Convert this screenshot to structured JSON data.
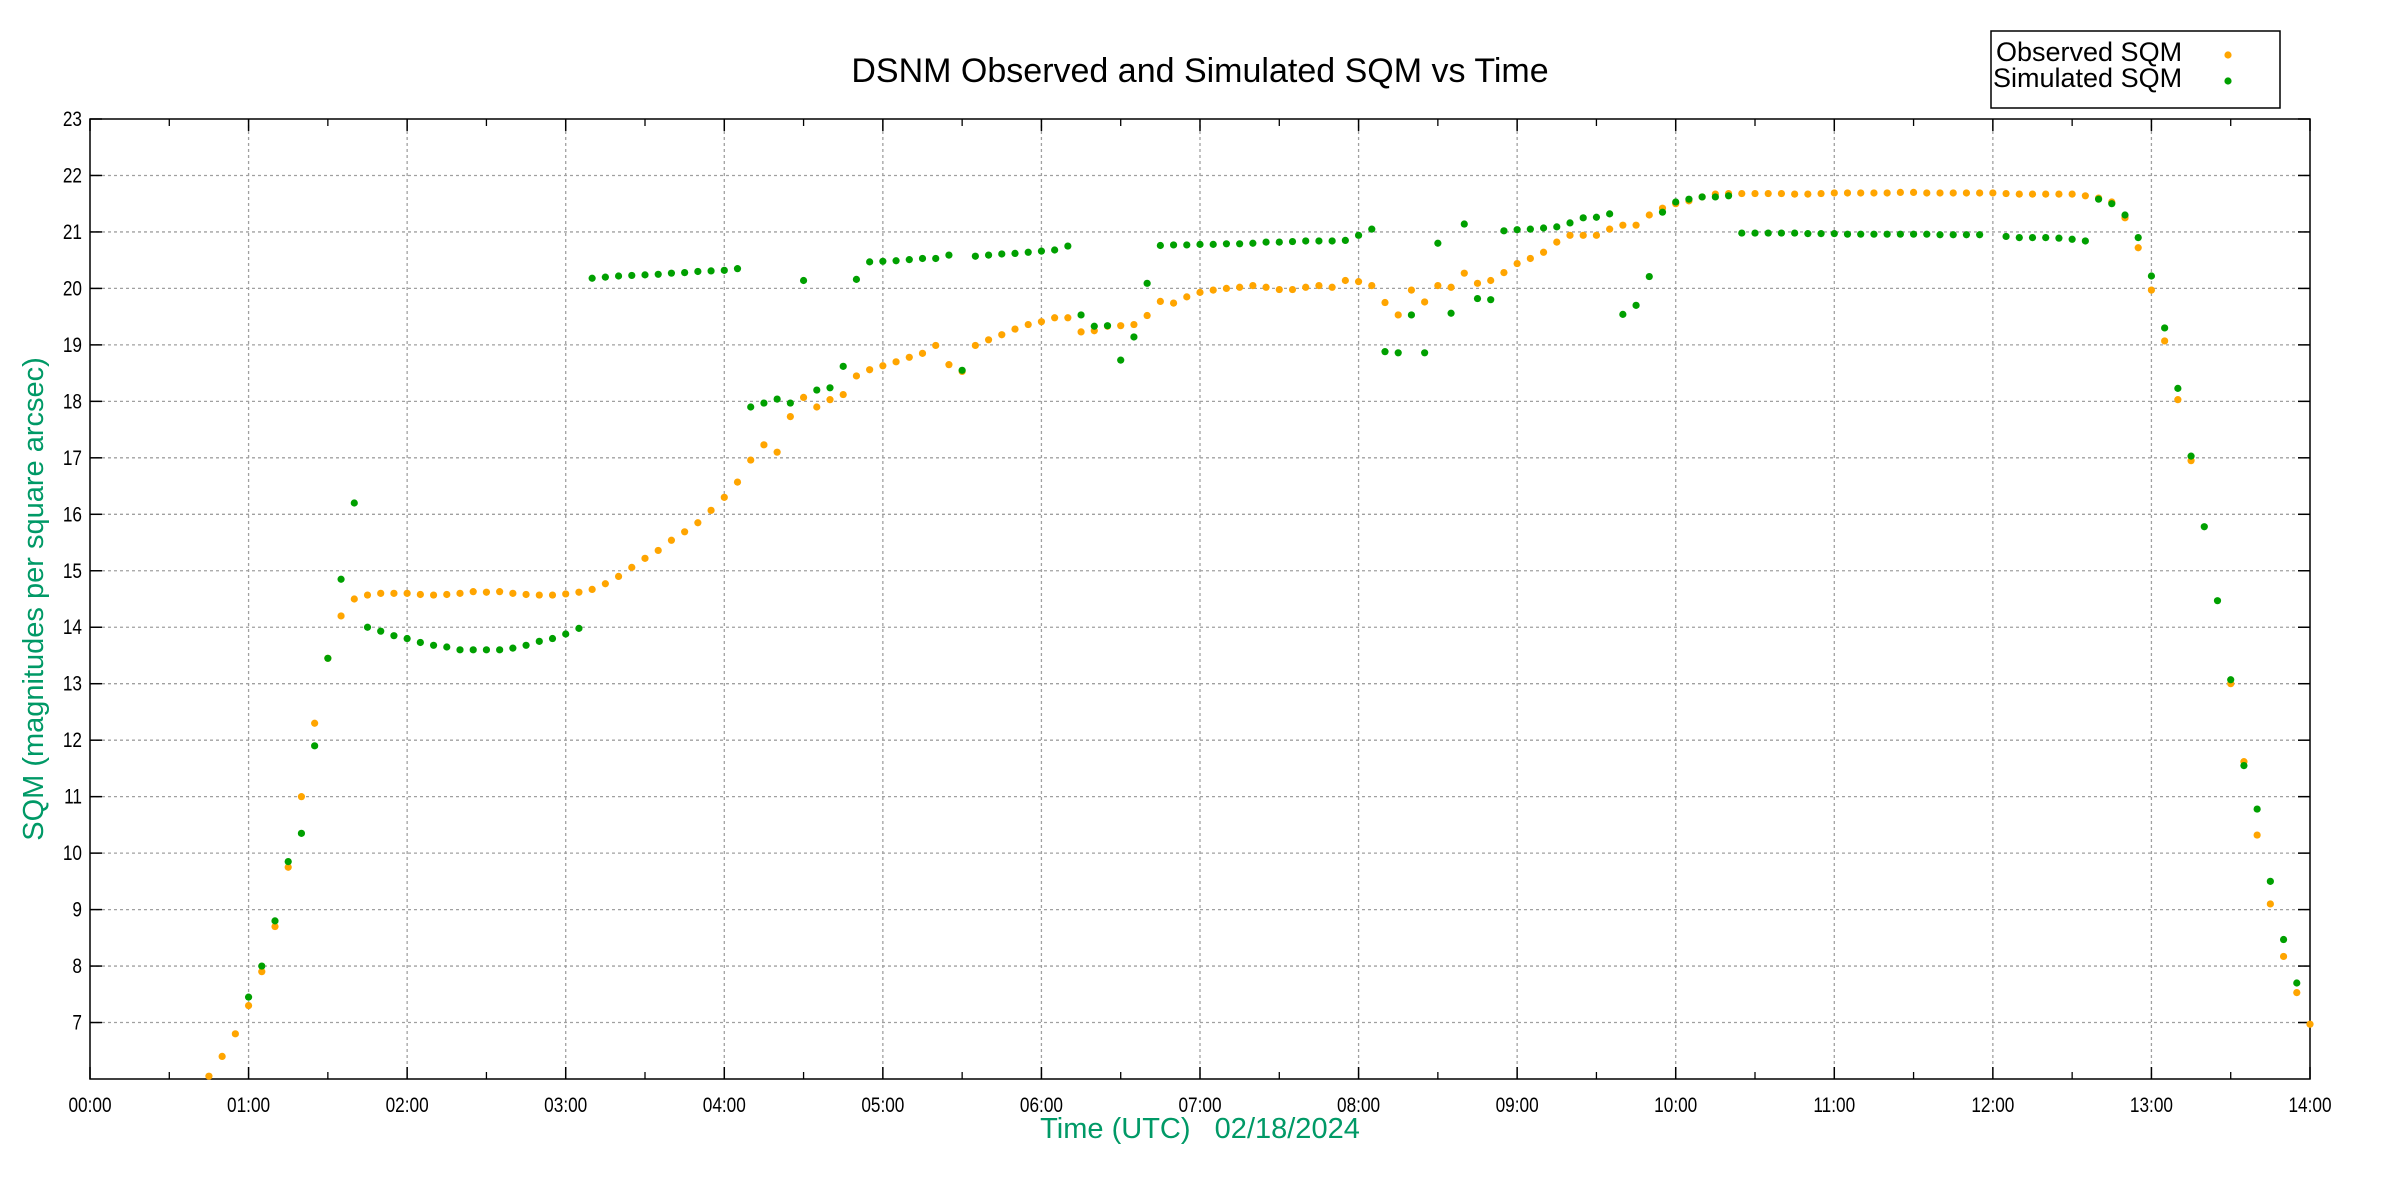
{
  "chart_data": {
    "type": "scatter",
    "title": "DSNM Observed and Simulated SQM vs Time",
    "xlabel": "Time (UTC)   02/18/2024",
    "ylabel": "SQM (magnitudes per square arcsec)",
    "xlim": [
      "00:00",
      "14:00"
    ],
    "ylim": [
      6,
      23
    ],
    "x_ticks": [
      "00:00",
      "01:00",
      "02:00",
      "03:00",
      "04:00",
      "05:00",
      "06:00",
      "07:00",
      "08:00",
      "09:00",
      "10:00",
      "11:00",
      "12:00",
      "13:00",
      "14:00"
    ],
    "y_ticks": [
      7,
      8,
      9,
      10,
      11,
      12,
      13,
      14,
      15,
      16,
      17,
      18,
      19,
      20,
      21,
      22,
      23
    ],
    "grid": true,
    "legend_placement": "top-right, outside plot",
    "x": [
      "00:45",
      "00:50",
      "00:55",
      "01:00",
      "01:05",
      "01:10",
      "01:15",
      "01:20",
      "01:25",
      "01:30",
      "01:35",
      "01:40",
      "01:45",
      "01:50",
      "01:55",
      "02:00",
      "02:05",
      "02:10",
      "02:15",
      "02:20",
      "02:25",
      "02:30",
      "02:35",
      "02:40",
      "02:45",
      "02:50",
      "02:55",
      "03:00",
      "03:05",
      "03:10",
      "03:15",
      "03:20",
      "03:25",
      "03:30",
      "03:35",
      "03:40",
      "03:45",
      "03:50",
      "03:55",
      "04:00",
      "04:05",
      "04:10",
      "04:15",
      "04:20",
      "04:25",
      "04:30",
      "04:35",
      "04:40",
      "04:45",
      "04:50",
      "04:55",
      "05:00",
      "05:05",
      "05:10",
      "05:15",
      "05:20",
      "05:25",
      "05:30",
      "05:35",
      "05:40",
      "05:45",
      "05:50",
      "05:55",
      "06:00",
      "06:05",
      "06:10",
      "06:15",
      "06:20",
      "06:25",
      "06:30",
      "06:35",
      "06:40",
      "06:45",
      "06:50",
      "06:55",
      "07:00",
      "07:05",
      "07:10",
      "07:15",
      "07:20",
      "07:25",
      "07:30",
      "07:35",
      "07:40",
      "07:45",
      "07:50",
      "07:55",
      "08:00",
      "08:05",
      "08:10",
      "08:15",
      "08:20",
      "08:25",
      "08:30",
      "08:35",
      "08:40",
      "08:45",
      "08:50",
      "08:55",
      "09:00",
      "09:05",
      "09:10",
      "09:15",
      "09:20",
      "09:25",
      "09:30",
      "09:35",
      "09:40",
      "09:45",
      "09:50",
      "09:55",
      "10:00",
      "10:05",
      "10:10",
      "10:15",
      "10:20",
      "10:25",
      "10:30",
      "10:35",
      "10:40",
      "10:45",
      "10:50",
      "10:55",
      "11:00",
      "11:05",
      "11:10",
      "11:15",
      "11:20",
      "11:25",
      "11:30",
      "11:35",
      "11:40",
      "11:45",
      "11:50",
      "11:55",
      "12:00",
      "12:05",
      "12:10",
      "12:15",
      "12:20",
      "12:25",
      "12:30",
      "12:35",
      "12:40",
      "12:45",
      "12:50",
      "12:55",
      "13:00",
      "13:05",
      "13:10",
      "13:15",
      "13:20",
      "13:25",
      "13:30",
      "13:35",
      "13:40",
      "13:45",
      "13:50",
      "13:55",
      "14:00"
    ],
    "series": [
      {
        "name": "Observed SQM",
        "color": "#ffa500",
        "values": [
          6.05,
          6.4,
          6.8,
          7.3,
          7.9,
          8.7,
          9.75,
          11.0,
          12.3,
          13.45,
          14.2,
          14.5,
          14.57,
          14.6,
          14.6,
          14.6,
          14.58,
          14.57,
          14.58,
          14.6,
          14.63,
          14.62,
          14.63,
          14.6,
          14.58,
          14.57,
          14.57,
          14.59,
          14.62,
          14.67,
          14.77,
          14.9,
          15.06,
          15.22,
          15.36,
          15.54,
          15.69,
          15.85,
          16.07,
          16.3,
          16.57,
          16.96,
          17.23,
          17.1,
          17.73,
          18.07,
          17.9,
          18.03,
          18.12,
          18.45,
          18.56,
          18.63,
          18.7,
          18.78,
          18.85,
          18.99,
          18.65,
          18.53,
          18.99,
          19.09,
          19.18,
          19.28,
          19.36,
          19.41,
          19.48,
          19.48,
          19.23,
          19.25,
          19.33,
          19.34,
          19.36,
          19.52,
          19.77,
          19.74,
          19.85,
          19.93,
          19.97,
          20.0,
          20.02,
          20.05,
          20.02,
          19.98,
          19.98,
          20.02,
          20.05,
          20.02,
          20.14,
          20.12,
          20.05,
          19.75,
          19.53,
          19.97,
          19.76,
          20.05,
          20.02,
          20.27,
          20.09,
          20.14,
          20.28,
          20.44,
          20.53,
          20.64,
          20.82,
          20.94,
          20.94,
          20.94,
          21.05,
          21.12,
          21.12,
          21.3,
          21.42,
          21.5,
          21.55,
          21.62,
          21.67,
          21.68,
          21.68,
          21.68,
          21.68,
          21.68,
          21.67,
          21.67,
          21.68,
          21.69,
          21.69,
          21.69,
          21.69,
          21.69,
          21.7,
          21.7,
          21.69,
          21.69,
          21.69,
          21.69,
          21.69,
          21.69,
          21.68,
          21.67,
          21.67,
          21.67,
          21.67,
          21.67,
          21.64,
          21.6,
          21.53,
          21.25,
          20.72,
          19.97,
          19.07,
          18.03,
          16.95,
          null,
          null,
          13.0,
          11.62,
          10.32,
          9.1,
          8.17,
          7.53,
          6.97
        ]
      },
      {
        "name": "Simulated SQM",
        "color": "#00a000",
        "values": [
          null,
          null,
          null,
          7.45,
          8.0,
          8.8,
          9.85,
          10.35,
          11.9,
          13.45,
          14.85,
          16.2,
          14.0,
          13.93,
          13.85,
          13.8,
          13.73,
          13.68,
          13.65,
          13.6,
          13.6,
          13.6,
          13.6,
          13.63,
          13.68,
          13.75,
          13.8,
          13.88,
          13.98,
          20.18,
          20.2,
          20.22,
          20.23,
          20.24,
          20.25,
          20.27,
          20.28,
          20.3,
          20.31,
          20.32,
          20.35,
          17.9,
          17.97,
          18.04,
          17.97,
          20.14,
          18.2,
          18.24,
          18.62,
          20.16,
          20.47,
          20.48,
          20.49,
          20.51,
          20.53,
          20.53,
          20.59,
          18.55,
          20.57,
          20.59,
          20.61,
          20.62,
          20.64,
          20.66,
          20.68,
          20.75,
          19.53,
          19.33,
          19.34,
          18.73,
          19.14,
          20.09,
          20.76,
          20.77,
          20.77,
          20.78,
          20.78,
          20.79,
          20.79,
          20.8,
          20.82,
          20.82,
          20.83,
          20.84,
          20.84,
          20.84,
          20.85,
          20.94,
          21.05,
          18.88,
          18.86,
          19.53,
          18.86,
          20.8,
          19.56,
          21.14,
          19.82,
          19.8,
          21.02,
          21.04,
          21.05,
          21.07,
          21.09,
          21.16,
          21.25,
          21.26,
          21.32,
          19.54,
          19.7,
          20.21,
          21.35,
          21.53,
          21.58,
          21.62,
          21.62,
          21.64,
          20.98,
          20.98,
          20.98,
          20.98,
          20.98,
          20.97,
          20.97,
          20.97,
          20.96,
          20.96,
          20.96,
          20.96,
          20.96,
          20.96,
          20.96,
          20.95,
          20.95,
          20.95,
          20.95,
          null,
          20.92,
          20.9,
          20.9,
          20.9,
          20.89,
          20.87,
          20.84,
          21.58,
          21.5,
          21.3,
          20.9,
          20.22,
          19.3,
          18.23,
          17.03,
          15.78,
          14.47,
          13.07,
          11.55,
          10.78,
          9.5,
          8.47,
          7.7,
          null
        ]
      }
    ],
    "axis_label_color": "#009966"
  }
}
